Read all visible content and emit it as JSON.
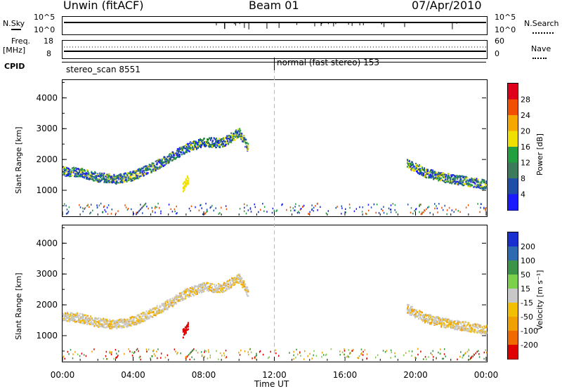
{
  "header": {
    "station": "Unwin (fitACF)",
    "beam": "Beam 01",
    "date": "07/Apr/2010"
  },
  "nsky_panel": {
    "left_label": "N.Sky",
    "left_ticks": [
      "10^5",
      "10^0"
    ],
    "right_label": "N.Search",
    "right_ticks": [
      "10^5",
      "10^0"
    ]
  },
  "freq_panel": {
    "left_label_top": "Freq.",
    "left_label_unit": "[MHz]",
    "left_ticks": [
      "18",
      "8"
    ],
    "right_label": "Nave",
    "right_ticks": [
      "60",
      "0"
    ]
  },
  "cpid_panel": {
    "label": "CPID",
    "segments": [
      {
        "name": "stereo_scan 8551",
        "start_hour": 0
      },
      {
        "name": "normal (fast stereo) 153",
        "start_hour": 12
      }
    ]
  },
  "x_axis": {
    "label": "Time UT",
    "ticks": [
      "00:00",
      "04:00",
      "08:00",
      "12:00",
      "16:00",
      "20:00",
      "00:00"
    ]
  },
  "chart_data": [
    {
      "type": "heatmap",
      "title": "",
      "xlabel": "Time UT",
      "ylabel": "Slant Range [km]",
      "xlim": [
        0,
        24
      ],
      "ylim": [
        180,
        4600
      ],
      "y_ticks": [
        "1000",
        "2000",
        "3000",
        "4000"
      ],
      "colorbar_label": "Power [dB]",
      "colorbar_ticks": [
        "28",
        "24",
        "20",
        "16",
        "12",
        "8",
        "4"
      ],
      "colorbar_colors": [
        "#e0001a",
        "#f05000",
        "#f4a800",
        "#f0e000",
        "#22a040",
        "#3b7a5a",
        "#1e4ea8",
        "#1a1aff"
      ],
      "echo_regions": [
        {
          "name": "morning arc",
          "x": [
            0.0,
            1.0,
            2.0,
            3.0,
            4.0,
            5.0,
            6.0,
            7.0,
            8.0,
            9.0,
            10.0,
            10.5
          ],
          "range_km": [
            1650,
            1600,
            1450,
            1380,
            1500,
            1750,
            2050,
            2400,
            2600,
            2550,
            2900,
            2400
          ]
        },
        {
          "name": "patch 07 UT",
          "x": [
            6.8,
            7.1
          ],
          "range_km": [
            1100,
            1400
          ]
        },
        {
          "name": "evening arc",
          "x": [
            19.5,
            20.5,
            21.5,
            22.5,
            23.5,
            24.0
          ],
          "range_km": [
            1900,
            1600,
            1450,
            1350,
            1250,
            1200
          ]
        }
      ]
    },
    {
      "type": "heatmap",
      "title": "",
      "xlabel": "Time UT",
      "ylabel": "Slant Range [km]",
      "xlim": [
        0,
        24
      ],
      "ylim": [
        180,
        4600
      ],
      "y_ticks": [
        "1000",
        "2000",
        "3000",
        "4000"
      ],
      "colorbar_label": "Velocity [m s⁻¹]",
      "colorbar_ticks": [
        "200",
        "100",
        "50",
        "15",
        "-15",
        "-50",
        "-100",
        "-200"
      ],
      "colorbar_colors": [
        "#1a2fd0",
        "#2e6ab0",
        "#3c9448",
        "#7cd04a",
        "#c8c8c8",
        "#f2c000",
        "#f0a000",
        "#f06a00",
        "#e00000"
      ]
    }
  ]
}
